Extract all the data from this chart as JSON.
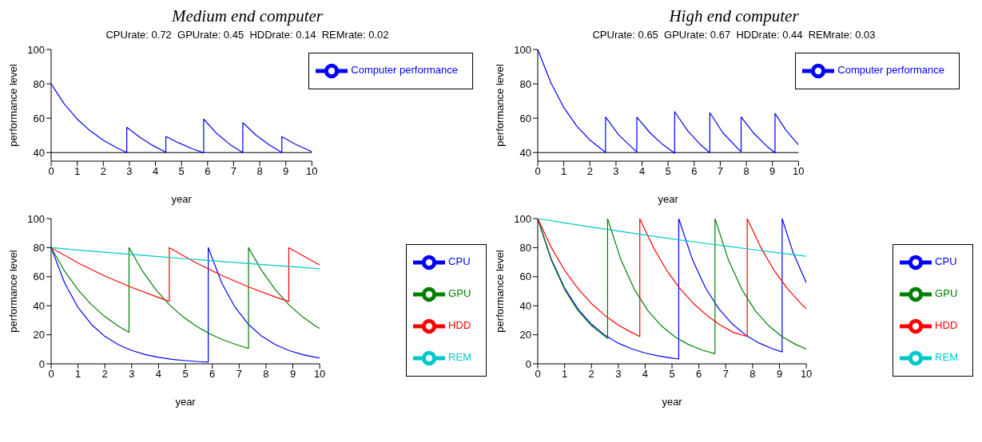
{
  "chart_data": [
    {
      "type": "line",
      "title": "Medium end computer",
      "subtitle": "CPUrate: 0.72  GPUrate: 0.45  HDDrate: 0.14  REMrate: 0.02",
      "xlabel": "year",
      "ylabel": "performance level",
      "xlim": [
        0,
        10
      ],
      "xticks": [
        0,
        1,
        2,
        3,
        4,
        5,
        6,
        7,
        8,
        9,
        10
      ],
      "ylim": [
        35,
        100
      ],
      "yticks": [
        40,
        60,
        80,
        100
      ],
      "legend": "top right",
      "ref_lines": [
        {
          "axis": "y",
          "value": 40,
          "color": "#000000"
        }
      ],
      "series": [
        {
          "name": "Computer performance",
          "color": "#0000ff",
          "x": [
            0,
            0.5,
            1,
            1.5,
            2,
            2.5,
            2.9,
            2.9,
            3.4,
            3.9,
            4.4,
            4.4,
            4.9,
            5.4,
            5.85,
            5.85,
            6.35,
            6.85,
            7.35,
            7.35,
            7.85,
            8.35,
            8.85,
            8.85,
            9.35,
            9.85,
            10
          ],
          "values": [
            80,
            68.4,
            59.5,
            52.6,
            47.2,
            42.9,
            40,
            54.7,
            48.9,
            44.1,
            40.2,
            49.4,
            45.6,
            42.3,
            39.8,
            59.5,
            51.1,
            44.8,
            40,
            57.4,
            50.2,
            44.6,
            40,
            49.3,
            45,
            41.5,
            40.5
          ]
        }
      ]
    },
    {
      "type": "line",
      "title": "High end computer",
      "subtitle": "CPUrate: 0.65  GPUrate: 0.67  HDDrate: 0.44  REMrate: 0.03",
      "xlabel": "year",
      "ylabel": "performance level",
      "xlim": [
        0,
        10
      ],
      "xticks": [
        0,
        1,
        2,
        3,
        4,
        5,
        6,
        7,
        8,
        9,
        10
      ],
      "ylim": [
        35,
        100
      ],
      "yticks": [
        40,
        60,
        80,
        100
      ],
      "legend": "top right",
      "ref_lines": [
        {
          "axis": "y",
          "value": 40,
          "color": "#000000"
        }
      ],
      "series": [
        {
          "name": "Computer performance",
          "color": "#0000ff",
          "x": [
            0,
            0.5,
            1,
            1.5,
            2,
            2.6,
            2.6,
            3.1,
            3.8,
            3.8,
            4.3,
            4.8,
            5.25,
            5.25,
            5.75,
            6.25,
            6.6,
            6.6,
            7.1,
            7.8,
            7.8,
            8.3,
            8.8,
            9.1,
            9.1,
            9.5,
            10
          ],
          "values": [
            100,
            80.7,
            66.2,
            55.4,
            47.3,
            40.1,
            60.7,
            50.4,
            40.3,
            60.6,
            51.6,
            44.6,
            39.6,
            63.8,
            52.7,
            44.5,
            39.9,
            63.2,
            51.5,
            40.4,
            60.7,
            51,
            43.5,
            39.9,
            62.8,
            53.4,
            44.5
          ]
        }
      ]
    },
    {
      "type": "line",
      "xlabel": "year",
      "ylabel": "performance level",
      "xlim": [
        0,
        10
      ],
      "xticks": [
        0,
        1,
        2,
        3,
        4,
        5,
        6,
        7,
        8,
        9,
        10
      ],
      "ylim": [
        0,
        100
      ],
      "yticks": [
        0,
        20,
        40,
        60,
        80,
        100
      ],
      "legend": "right",
      "series": [
        {
          "name": "CPU",
          "color": "#0000ff",
          "x": [
            0,
            0.5,
            1,
            1.5,
            2,
            2.5,
            3,
            3.5,
            4,
            4.5,
            5,
            5.5,
            5.85,
            5.85,
            6.35,
            6.85,
            7.35,
            7.85,
            8.35,
            8.85,
            9.35,
            9.85,
            10
          ],
          "values": [
            80,
            55.8,
            38.9,
            27.1,
            18.9,
            13.2,
            9.2,
            6.4,
            4.5,
            3.1,
            2.2,
            1.5,
            1.2,
            80,
            55.8,
            38.9,
            27.1,
            18.9,
            13.2,
            9.2,
            6.4,
            4.5,
            4
          ]
        },
        {
          "name": "GPU",
          "color": "#008000",
          "x": [
            0,
            0.5,
            1,
            1.5,
            2,
            2.5,
            2.9,
            2.9,
            3.4,
            3.9,
            4.4,
            4.9,
            5.4,
            5.9,
            6.4,
            6.9,
            7.35,
            7.35,
            7.85,
            8.35,
            8.85,
            9.35,
            9.85,
            10
          ],
          "values": [
            80,
            63.9,
            51,
            40.7,
            32.5,
            26,
            21.7,
            80,
            63.9,
            51,
            40.7,
            32.5,
            26,
            20.7,
            16.5,
            13.2,
            10.6,
            80,
            63.9,
            51,
            40.7,
            32.5,
            26,
            24.3
          ]
        },
        {
          "name": "HDD",
          "color": "#ff0000",
          "x": [
            0,
            1,
            2,
            3,
            4,
            4.4,
            4.4,
            5.4,
            6.4,
            7.4,
            8.4,
            8.85,
            8.85,
            9.85,
            10
          ],
          "values": [
            80,
            69.5,
            60.4,
            52.6,
            45.7,
            43,
            80,
            69.5,
            60.4,
            52.6,
            45.7,
            42.9,
            80,
            69.5,
            68.1
          ]
        },
        {
          "name": "REM",
          "color": "#00c8c8",
          "x": [
            0,
            1,
            2,
            3,
            4,
            5,
            6,
            7,
            8,
            9,
            10
          ],
          "values": [
            80,
            78.4,
            76.9,
            75.3,
            73.8,
            72.4,
            71,
            69.6,
            68.2,
            66.8,
            65.5
          ]
        }
      ]
    },
    {
      "type": "line",
      "xlabel": "year",
      "ylabel": "performance level",
      "xlim": [
        0,
        10
      ],
      "xticks": [
        0,
        1,
        2,
        3,
        4,
        5,
        6,
        7,
        8,
        9,
        10
      ],
      "ylim": [
        0,
        100
      ],
      "yticks": [
        0,
        20,
        40,
        60,
        80,
        100
      ],
      "legend": "right",
      "series": [
        {
          "name": "CPU",
          "color": "#0000ff",
          "x": [
            0,
            0.5,
            1,
            1.5,
            2,
            2.5,
            3,
            3.5,
            4,
            4.5,
            5,
            5.25,
            5.25,
            5.75,
            6.25,
            6.75,
            7.25,
            7.75,
            8.25,
            8.75,
            9.1,
            9.1,
            9.5,
            10
          ],
          "values": [
            100,
            72.3,
            52.2,
            37.7,
            27.3,
            19.7,
            14.2,
            10.3,
            7.4,
            5.4,
            3.9,
            3.3,
            100,
            72.3,
            52.2,
            37.7,
            27.3,
            19.7,
            14.2,
            10.3,
            8.2,
            100,
            77.1,
            55.7
          ]
        },
        {
          "name": "GPU",
          "color": "#008000",
          "x": [
            0,
            0.5,
            1,
            1.5,
            2,
            2.6,
            2.6,
            3.1,
            3.6,
            4.1,
            4.6,
            5.1,
            5.6,
            6.1,
            6.6,
            6.6,
            7.1,
            7.6,
            8.1,
            8.6,
            9.1,
            9.6,
            10
          ],
          "values": [
            100,
            71.5,
            51.2,
            36.6,
            26.2,
            17.5,
            100,
            71.5,
            51.2,
            36.6,
            26.2,
            18.7,
            13.4,
            9.6,
            6.9,
            100,
            71.5,
            51.2,
            36.6,
            26.2,
            18.7,
            13.4,
            10.2
          ]
        },
        {
          "name": "HDD",
          "color": "#ff0000",
          "x": [
            0,
            0.5,
            1,
            1.5,
            2,
            2.5,
            3,
            3.5,
            3.8,
            3.8,
            4.3,
            4.8,
            5.3,
            5.8,
            6.3,
            6.8,
            7.3,
            7.8,
            7.8,
            8.3,
            8.8,
            9.3,
            9.8,
            10
          ],
          "values": [
            100,
            80.3,
            64.4,
            51.7,
            41.5,
            33.3,
            26.7,
            21.5,
            18.8,
            100,
            80.3,
            64.4,
            51.7,
            41.5,
            33.3,
            26.7,
            21.5,
            18.8,
            100,
            80.3,
            64.4,
            51.7,
            41.5,
            38
          ]
        },
        {
          "name": "REM",
          "color": "#00c8c8",
          "x": [
            0,
            1,
            2,
            3,
            4,
            5,
            6,
            7,
            8,
            9,
            10
          ],
          "values": [
            100,
            97,
            94.2,
            91.4,
            88.7,
            86.1,
            83.5,
            81.1,
            78.7,
            76.3,
            74.1
          ]
        }
      ]
    }
  ]
}
